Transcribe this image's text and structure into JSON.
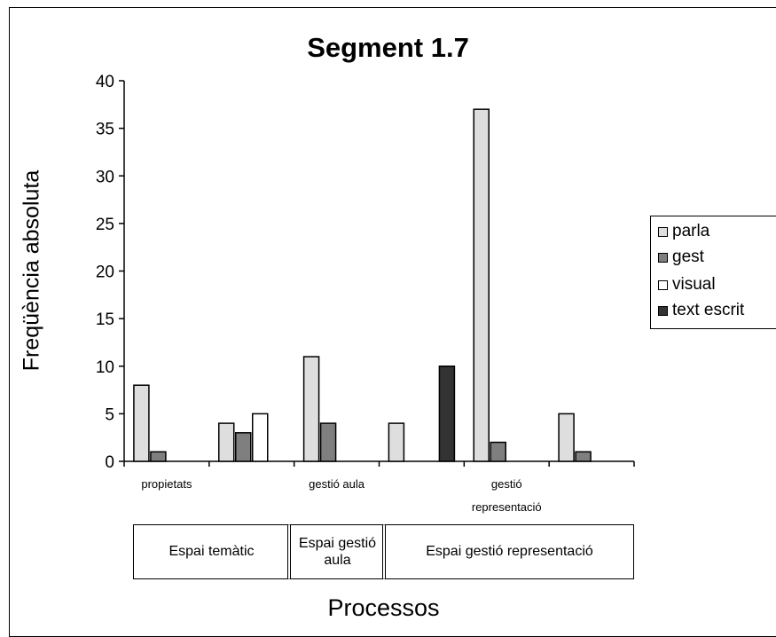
{
  "chart_data": {
    "type": "bar",
    "title": "Segment 1.7",
    "ylabel": "Freqüència absoluta",
    "xlabel": "Processos",
    "ylim": [
      0,
      40
    ],
    "yticks": [
      0,
      5,
      10,
      15,
      20,
      25,
      30,
      35,
      40
    ],
    "categories": [
      "propietats",
      "",
      "gestió aula",
      "",
      "gestió representació",
      ""
    ],
    "series": [
      {
        "name": "parla",
        "color": "#dedede",
        "values": [
          8,
          4,
          11,
          4,
          37,
          5
        ]
      },
      {
        "name": "gest",
        "color": "#7f7f7f",
        "values": [
          1,
          3,
          4,
          0,
          2,
          1
        ]
      },
      {
        "name": "visual",
        "color": "#ffffff",
        "values": [
          0,
          5,
          0,
          0,
          0,
          0
        ]
      },
      {
        "name": "text escrit",
        "color": "#333333",
        "values": [
          0,
          0,
          0,
          10,
          0,
          0
        ]
      }
    ],
    "groups": [
      {
        "label": "Espai temàtic",
        "span": [
          0,
          1
        ]
      },
      {
        "label": "Espai gestió aula",
        "span": [
          2,
          2
        ]
      },
      {
        "label": "Espai gestió representació",
        "span": [
          3,
          5
        ]
      }
    ],
    "grid": false,
    "legend_position": "right"
  }
}
